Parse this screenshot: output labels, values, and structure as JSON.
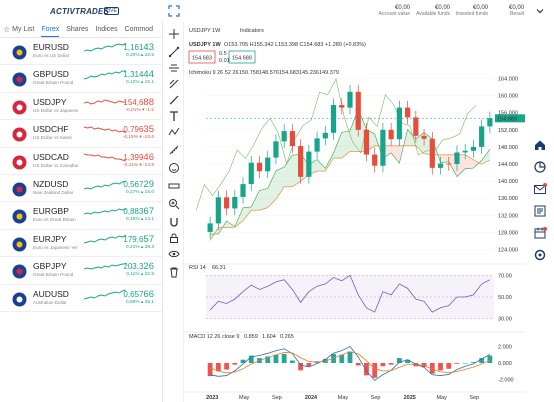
{
  "header": {
    "logo": "ACTIVTRADES",
    "live_badge": "LIVE",
    "account": [
      {
        "value": "€0,00",
        "label": "Account value"
      },
      {
        "value": "€0,00",
        "label": "Available funds"
      },
      {
        "value": "€0,00",
        "label": "Invested funds"
      },
      {
        "value": "€0,00",
        "label": "Result"
      }
    ]
  },
  "tabs": [
    "My List",
    "Forex",
    "Shares",
    "Indices",
    "Commod"
  ],
  "active_tab": "Forex",
  "instruments": [
    {
      "symbol": "EURUSD",
      "desc": "Euro vs US Dollar",
      "price_main": "1,161",
      "price_big": "43",
      "change": "0,20% ▴ 22.5",
      "dir": "up",
      "flag": "eu",
      "spark": [
        6,
        7,
        6,
        8,
        9,
        8,
        10,
        11,
        10,
        12,
        13,
        12,
        14
      ]
    },
    {
      "symbol": "GBPUSD",
      "desc": "Great Britain Pound",
      "price_main": "1,314",
      "price_big": "44",
      "change": "0,12% ▴ 15.1",
      "dir": "up",
      "flag": "gb",
      "spark": [
        5,
        6,
        8,
        7,
        8,
        10,
        9,
        11,
        10,
        12,
        11,
        13,
        13
      ]
    },
    {
      "symbol": "USDJPY",
      "desc": "US Dollar vs Japanese",
      "price_main": "154,6",
      "price_big": "88",
      "change": "-0,01% ▾ -1.2",
      "dir": "down",
      "flag": "us",
      "spark": [
        9,
        10,
        8,
        9,
        11,
        10,
        12,
        11,
        10,
        9,
        11,
        10,
        10
      ]
    },
    {
      "symbol": "USDCHF",
      "desc": "US Dollar vs Swiss",
      "price_main": "0,796",
      "price_big": "35",
      "change": "-0,15% ▾ -13.6",
      "dir": "down",
      "flag": "us",
      "spark": [
        12,
        11,
        12,
        10,
        11,
        10,
        9,
        10,
        8,
        9,
        7,
        8,
        6
      ]
    },
    {
      "symbol": "USDCAD",
      "desc": "US Dollar vs Canadian",
      "price_main": "1,399",
      "price_big": "46",
      "change": "-0,11% ▾ -14.9",
      "dir": "down",
      "flag": "us",
      "spark": [
        13,
        12,
        12,
        11,
        12,
        10,
        10,
        9,
        10,
        8,
        8,
        7,
        6
      ]
    },
    {
      "symbol": "NZDUSD",
      "desc": "New Zealand Dollar",
      "price_main": "0,567",
      "price_big": "29",
      "change": "0,27% ▴ 15.0",
      "dir": "up",
      "flag": "nz",
      "spark": [
        5,
        6,
        5,
        7,
        8,
        7,
        9,
        8,
        10,
        11,
        10,
        12,
        13
      ]
    },
    {
      "symbol": "EURGBP",
      "desc": "Euro vs Great Britain",
      "price_main": "0,883",
      "price_big": "67",
      "change": "0,16% ▴ 14.1",
      "dir": "up",
      "flag": "eu",
      "spark": [
        7,
        8,
        7,
        9,
        8,
        9,
        10,
        9,
        11,
        10,
        12,
        11,
        12
      ]
    },
    {
      "symbol": "EURJPY",
      "desc": "Euro vs Japanese Yen",
      "price_main": "179,6",
      "price_big": "57",
      "change": "0,21% ▴ 38.3",
      "dir": "up",
      "flag": "eu",
      "spark": [
        6,
        7,
        8,
        7,
        9,
        10,
        9,
        11,
        12,
        11,
        13,
        12,
        14
      ]
    },
    {
      "symbol": "GBPJPY",
      "desc": "Great Britain Pound",
      "price_main": "203,3",
      "price_big": "26",
      "change": "0,11% ▴ 22.5",
      "dir": "up",
      "flag": "gb",
      "spark": [
        7,
        8,
        7,
        8,
        9,
        8,
        10,
        9,
        11,
        10,
        11,
        12,
        12
      ]
    },
    {
      "symbol": "AUDUSD",
      "desc": "Australian Dollar",
      "price_main": "0,657",
      "price_big": "66",
      "change": "0,69% ▴ 45.1",
      "dir": "up",
      "flag": "au",
      "spark": [
        5,
        6,
        7,
        6,
        8,
        9,
        8,
        10,
        11,
        12,
        11,
        13,
        14
      ]
    }
  ],
  "chart": {
    "symbol": "USDJPY",
    "timeframe": "1W",
    "indicators_label": "Indicators",
    "ohlc_text": "O153.705  H155.342  L153.398  C154.683  +1.280 (+0.83%)",
    "sell_price": "154.683",
    "buy_price": "154.688",
    "spread": "0.5",
    "qty": "0.01",
    "ichimoku_label": "Ichimoku 9 26 52 26",
    "ichimoku_values": [
      "150.758",
      "148.576",
      "154.683",
      "145.236",
      "149.379"
    ],
    "current_price_tag": "154.683",
    "rsi_label": "RSI 14",
    "rsi_value": "66.31",
    "macd_label": "MACD 12 26 close 9",
    "macd_values": [
      "0.859",
      "1.604",
      "0.265"
    ],
    "x_labels": [
      "2023",
      "May",
      "Sep",
      "2024",
      "May",
      "Sep",
      "2025",
      "May",
      "Sep"
    ],
    "price_ticks": [
      "164.000",
      "160.000",
      "156.000",
      "152.000",
      "148.000",
      "144.000",
      "140.000",
      "136.000",
      "132.000",
      "128.000",
      "124.000"
    ],
    "rsi_ticks": [
      "70.00",
      "50.00",
      "30.00"
    ],
    "macd_ticks": [
      "2.000",
      "0.000",
      "-2.000"
    ]
  },
  "chart_data": {
    "type": "line",
    "title": "USDJPY 1W",
    "ylim": [
      122,
      166
    ],
    "x": [
      "2023-01",
      "2023-02",
      "2023-03",
      "2023-04",
      "2023-05",
      "2023-06",
      "2023-07",
      "2023-08",
      "2023-09",
      "2023-10",
      "2023-11",
      "2023-12",
      "2024-01",
      "2024-02",
      "2024-03",
      "2024-04",
      "2024-05",
      "2024-06",
      "2024-07",
      "2024-08",
      "2024-09",
      "2024-10",
      "2024-11",
      "2024-12",
      "2025-01",
      "2025-02",
      "2025-03",
      "2025-04",
      "2025-05",
      "2025-06",
      "2025-07",
      "2025-08",
      "2025-09",
      "2025-10",
      "2025-11"
    ],
    "series": [
      {
        "name": "close",
        "values": [
          130.1,
          136.2,
          133.6,
          136.3,
          139.3,
          144.3,
          142.3,
          145.5,
          149.3,
          151.7,
          148.2,
          141.0,
          146.9,
          150.0,
          151.3,
          157.8,
          157.2,
          160.9,
          152.0,
          146.2,
          143.6,
          152.0,
          149.8,
          157.2,
          154.9,
          150.6,
          149.9,
          143.1,
          144.1,
          144.0,
          146.7,
          147.1,
          148.0,
          152.8,
          154.7
        ]
      },
      {
        "name": "rsi",
        "values": [
          38,
          46,
          44,
          48,
          55,
          61,
          57,
          60,
          64,
          66,
          57,
          45,
          55,
          60,
          62,
          68,
          65,
          70,
          52,
          40,
          36,
          55,
          52,
          62,
          58,
          48,
          46,
          36,
          40,
          42,
          50,
          50,
          52,
          62,
          66
        ]
      },
      {
        "name": "macd_hist",
        "values": [
          -1.6,
          -1.0,
          -0.8,
          -0.2,
          0.4,
          0.9,
          0.6,
          0.8,
          1.0,
          1.1,
          0.3,
          -0.9,
          -0.4,
          0.2,
          0.5,
          1.1,
          1.0,
          1.4,
          -0.3,
          -1.5,
          -1.8,
          -0.4,
          -0.2,
          0.6,
          0.4,
          -0.4,
          -0.5,
          -1.3,
          -0.9,
          -0.7,
          -0.1,
          0.0,
          0.1,
          0.6,
          0.9
        ]
      }
    ]
  }
}
